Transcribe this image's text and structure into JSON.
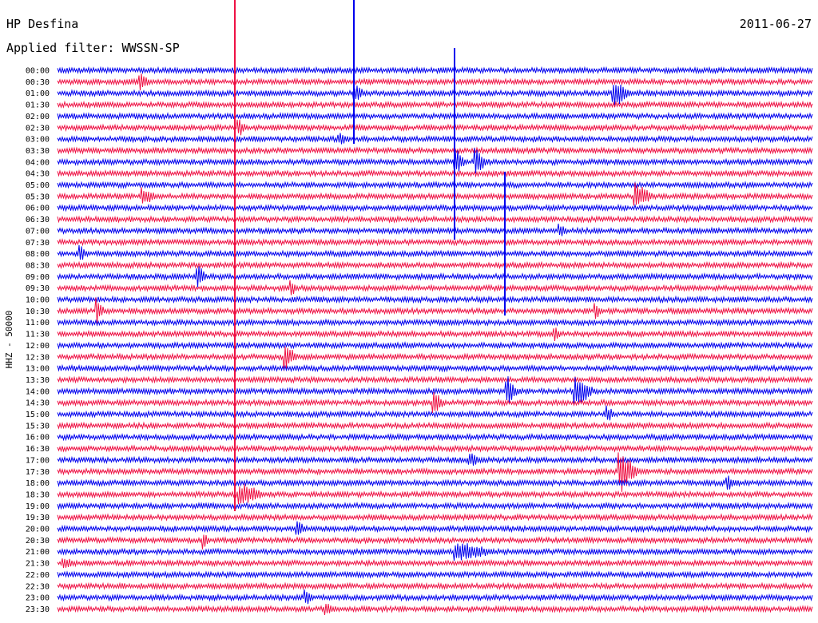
{
  "header": {
    "station": "HP Desfina",
    "filter": "Applied filter: WWSSN-SP",
    "date": "2011-06-27"
  },
  "chart_data": {
    "type": "helicorder",
    "ylabel": "HHZ - 50000",
    "time_labels": [
      "00:00",
      "00:30",
      "01:00",
      "01:30",
      "02:00",
      "02:30",
      "03:00",
      "03:30",
      "04:00",
      "04:30",
      "05:00",
      "05:30",
      "06:00",
      "06:30",
      "07:00",
      "07:30",
      "08:00",
      "08:30",
      "09:00",
      "09:30",
      "10:00",
      "10:30",
      "11:00",
      "11:30",
      "12:00",
      "12:30",
      "13:00",
      "13:30",
      "14:00",
      "14:30",
      "15:00",
      "15:30",
      "16:00",
      "16:30",
      "17:00",
      "17:30",
      "18:00",
      "18:30",
      "19:00",
      "19:30",
      "20:00",
      "20:30",
      "21:00",
      "21:30",
      "22:00",
      "22:30",
      "23:00",
      "23:30"
    ],
    "colors": [
      "#0000ee",
      "#ee1144"
    ]
  }
}
